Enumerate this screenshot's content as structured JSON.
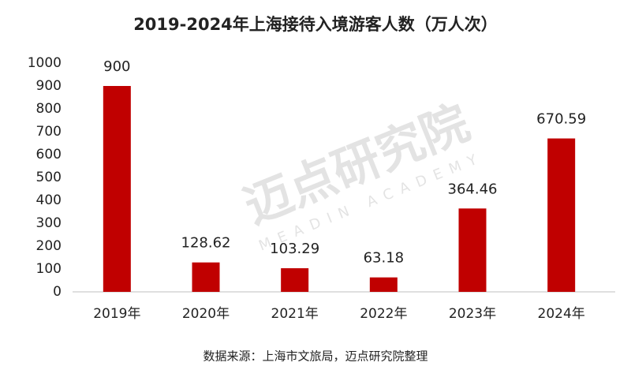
{
  "chart_data": {
    "type": "bar",
    "title": "2019-2024年上海接待入境游客人数（万人次）",
    "categories": [
      "2019年",
      "2020年",
      "2021年",
      "2022年",
      "2023年",
      "2024年"
    ],
    "values": [
      900,
      128.62,
      103.29,
      63.18,
      364.46,
      670.59
    ],
    "color": "#c00000",
    "ylim": [
      0,
      1000
    ],
    "yticks": [
      0,
      100,
      200,
      300,
      400,
      500,
      600,
      700,
      800,
      900,
      1000
    ],
    "grid": false,
    "data_labels": true,
    "watermark": "迈点研究院",
    "watermark_sub": "MEADIN ACADEMY",
    "source": "数据来源：上海市文旅局，迈点研究院整理"
  }
}
